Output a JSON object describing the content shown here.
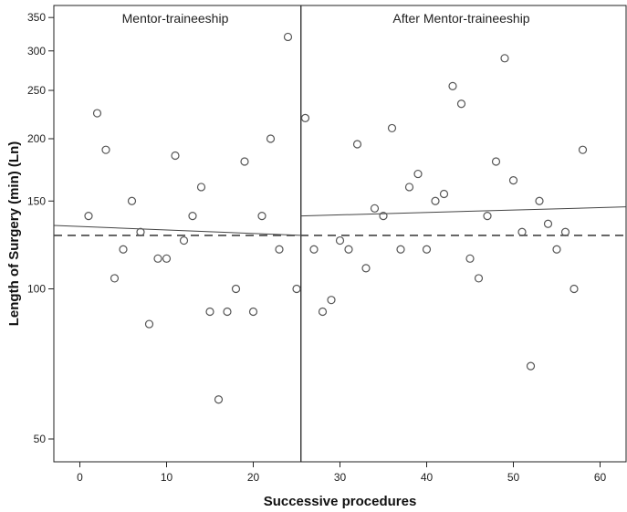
{
  "chart_data": {
    "type": "scatter",
    "xlabel": "Successive procedures",
    "ylabel": "Length of Surgery (min) (Ln)",
    "y_scale": "log",
    "xlim": [
      -3,
      63
    ],
    "ylim": [
      45,
      370
    ],
    "x_ticks": [
      0,
      10,
      20,
      30,
      40,
      50,
      60
    ],
    "y_ticks": [
      50,
      100,
      150,
      200,
      250,
      300,
      350
    ],
    "grid": false,
    "annotations": [
      {
        "text": "Mentor-traineeship",
        "x": 11,
        "y": 350
      },
      {
        "text": "After Mentor-traineeship",
        "x": 44,
        "y": 350
      }
    ],
    "divider_x": 25.5,
    "reference_line_y": 128,
    "fit_lines": [
      {
        "x": [
          -3,
          25.5
        ],
        "y": [
          134,
          128
        ]
      },
      {
        "x": [
          25.5,
          63
        ],
        "y": [
          140,
          146
        ]
      }
    ],
    "points": [
      [
        1,
        140
      ],
      [
        2,
        225
      ],
      [
        3,
        190
      ],
      [
        4,
        105
      ],
      [
        5,
        120
      ],
      [
        6,
        150
      ],
      [
        7,
        130
      ],
      [
        8,
        85
      ],
      [
        9,
        115
      ],
      [
        10,
        115
      ],
      [
        11,
        185
      ],
      [
        12,
        125
      ],
      [
        13,
        140
      ],
      [
        14,
        160
      ],
      [
        15,
        90
      ],
      [
        16,
        60
      ],
      [
        17,
        90
      ],
      [
        18,
        100
      ],
      [
        19,
        180
      ],
      [
        20,
        90
      ],
      [
        21,
        140
      ],
      [
        22,
        200
      ],
      [
        23,
        120
      ],
      [
        24,
        320
      ],
      [
        25,
        100
      ],
      [
        26,
        220
      ],
      [
        27,
        120
      ],
      [
        28,
        90
      ],
      [
        29,
        95
      ],
      [
        30,
        125
      ],
      [
        31,
        120
      ],
      [
        32,
        195
      ],
      [
        33,
        110
      ],
      [
        34,
        145
      ],
      [
        35,
        140
      ],
      [
        36,
        210
      ],
      [
        37,
        120
      ],
      [
        38,
        160
      ],
      [
        39,
        170
      ],
      [
        40,
        120
      ],
      [
        41,
        150
      ],
      [
        42,
        155
      ],
      [
        43,
        255
      ],
      [
        44,
        235
      ],
      [
        45,
        115
      ],
      [
        46,
        105
      ],
      [
        47,
        140
      ],
      [
        48,
        180
      ],
      [
        49,
        290
      ],
      [
        50,
        165
      ],
      [
        51,
        130
      ],
      [
        52,
        70
      ],
      [
        53,
        150
      ],
      [
        54,
        135
      ],
      [
        55,
        120
      ],
      [
        56,
        130
      ],
      [
        57,
        100
      ],
      [
        58,
        190
      ]
    ],
    "colors": {
      "marker": "#555555",
      "line": "#444444",
      "frame": "#222222"
    }
  }
}
